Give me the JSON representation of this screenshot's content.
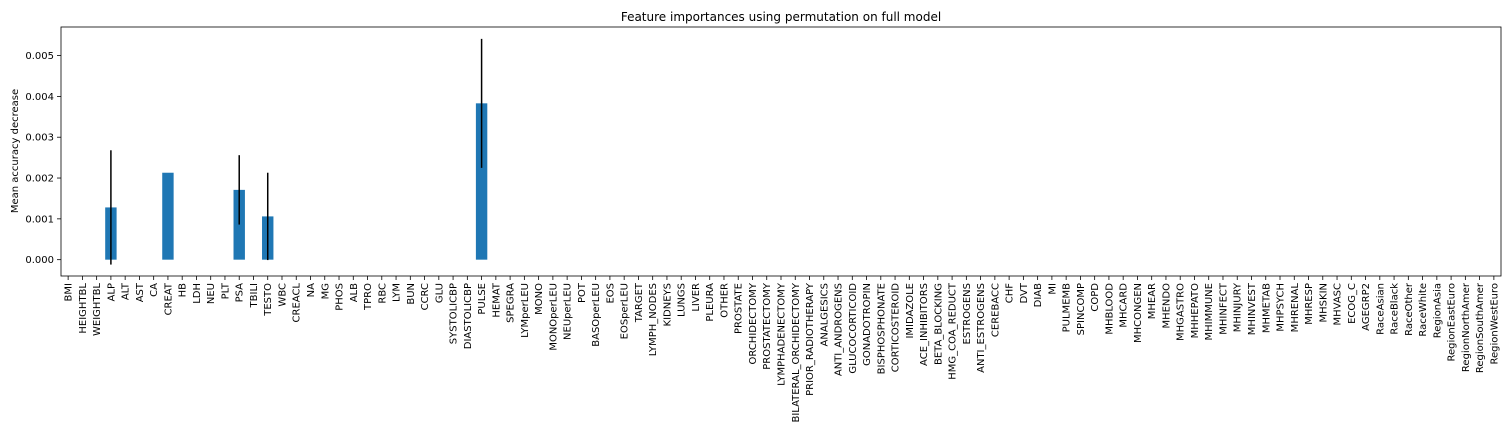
{
  "chart_data": {
    "type": "bar",
    "title": "Feature importances using permutation on full model",
    "xlabel": "",
    "ylabel": "Mean accuracy decrease",
    "ylim": [
      -0.0004,
      0.0057
    ],
    "yticks": [
      0.0,
      0.001,
      0.002,
      0.003,
      0.004,
      0.005
    ],
    "ytick_labels": [
      "0.000",
      "0.001",
      "0.002",
      "0.003",
      "0.004",
      "0.005"
    ],
    "grid": false,
    "bar_color": "#1f77b4",
    "error_color": "#000000",
    "categories": [
      "BMI",
      "HEIGHTBL",
      "WEIGHTBL",
      "ALP",
      "ALT",
      "AST",
      "CA",
      "CREAT",
      "HB",
      "LDH",
      "NEU",
      "PLT",
      "PSA",
      "TBILI",
      "TESTO",
      "WBC",
      "CREACL",
      "NA",
      "MG",
      "PHOS",
      "ALB",
      "TPRO",
      "RBC",
      "LYM",
      "BUN",
      "CCRC",
      "GLU",
      "SYSTOLICBP",
      "DIASTOLICBP",
      "PULSE",
      "HEMAT",
      "SPEGRA",
      "LYMperLEU",
      "MONO",
      "MONOperLEU",
      "NEUperLEU",
      "POT",
      "BASOperLEU",
      "EOS",
      "EOSperLEU",
      "TARGET",
      "LYMPH_NODES",
      "KIDNEYS",
      "LUNGS",
      "LIVER",
      "PLEURA",
      "OTHER",
      "PROSTATE",
      "ORCHIDECTOMY",
      "PROSTATECTOMY",
      "LYMPHADENECTOMY",
      "BILATERAL_ORCHIDECTOMY",
      "PRIOR_RADIOTHERAPY",
      "ANALGESICS",
      "ANTI_ANDROGENS",
      "GLUCOCORTICOID",
      "GONADOTROPIN",
      "BISPHOSPHONATE",
      "CORTICOSTEROID",
      "IMIDAZOLE",
      "ACE_INHIBITORS",
      "BETA_BLOCKING",
      "HMG_COA_REDUCT",
      "ESTROGENS",
      "ANTI_ESTROGENS",
      "CEREBACC",
      "CHF",
      "DVT",
      "DIAB",
      "MI",
      "PULMEMB",
      "SPINCOMP",
      "COPD",
      "MHBLOOD",
      "MHCARD",
      "MHCONGEN",
      "MHEAR",
      "MHENDO",
      "MHGASTRO",
      "MHHEPATO",
      "MHIMMUNE",
      "MHINFECT",
      "MHINJURY",
      "MHINVEST",
      "MHMETAB",
      "MHPSYCH",
      "MHRENAL",
      "MHRESP",
      "MHSKIN",
      "MHVASC",
      "ECOG_C",
      "AGEGRP2",
      "RaceAsian",
      "RaceBlack",
      "RaceOther",
      "RaceWhite",
      "RegionAsia",
      "RegionEastEuro",
      "RegionNorthAmer",
      "RegionSouthAmer",
      "RegionWestEuro"
    ],
    "values": [
      0,
      0,
      0,
      0.00128,
      0,
      0,
      0,
      0.00213,
      0,
      0,
      0,
      0,
      0.00171,
      0,
      0.00106,
      0,
      0,
      0,
      0,
      0,
      0,
      0,
      0,
      0,
      0,
      0,
      0,
      0,
      0,
      0.00383,
      0,
      0,
      0,
      0,
      0,
      0,
      0,
      0,
      0,
      0,
      0,
      0,
      0,
      0,
      0,
      0,
      0,
      0,
      0,
      0,
      0,
      0,
      0,
      0,
      0,
      0,
      0,
      0,
      0,
      0,
      0,
      0,
      0,
      0,
      0,
      0,
      0,
      0,
      0,
      0,
      0,
      0,
      0,
      0,
      0,
      0,
      0,
      0,
      0,
      0,
      0,
      0,
      0,
      0,
      0,
      0,
      0,
      0,
      0,
      0,
      0,
      0,
      0,
      0,
      0,
      0,
      0,
      0,
      0,
      0,
      0
    ],
    "errors": [
      0,
      0,
      0,
      0.0014,
      0,
      0,
      0,
      0,
      0,
      0,
      0,
      0,
      0.00085,
      0,
      0.00107,
      0,
      0,
      0,
      0,
      0,
      0,
      0,
      0,
      0,
      0,
      0,
      0,
      0,
      0,
      0.00158,
      0,
      0,
      0,
      0,
      0,
      0,
      0,
      0,
      0,
      0,
      0,
      0,
      0,
      0,
      0,
      0,
      0,
      0,
      0,
      0,
      0,
      0,
      0,
      0,
      0,
      0,
      0,
      0,
      0,
      0,
      0,
      0,
      0,
      0,
      0,
      0,
      0,
      0,
      0,
      0,
      0,
      0,
      0,
      0,
      0,
      0,
      0,
      0,
      0,
      0,
      0,
      0,
      0,
      0,
      0,
      0,
      0,
      0,
      0,
      0,
      0,
      0,
      0,
      0,
      0,
      0,
      0,
      0,
      0,
      0,
      0
    ]
  }
}
